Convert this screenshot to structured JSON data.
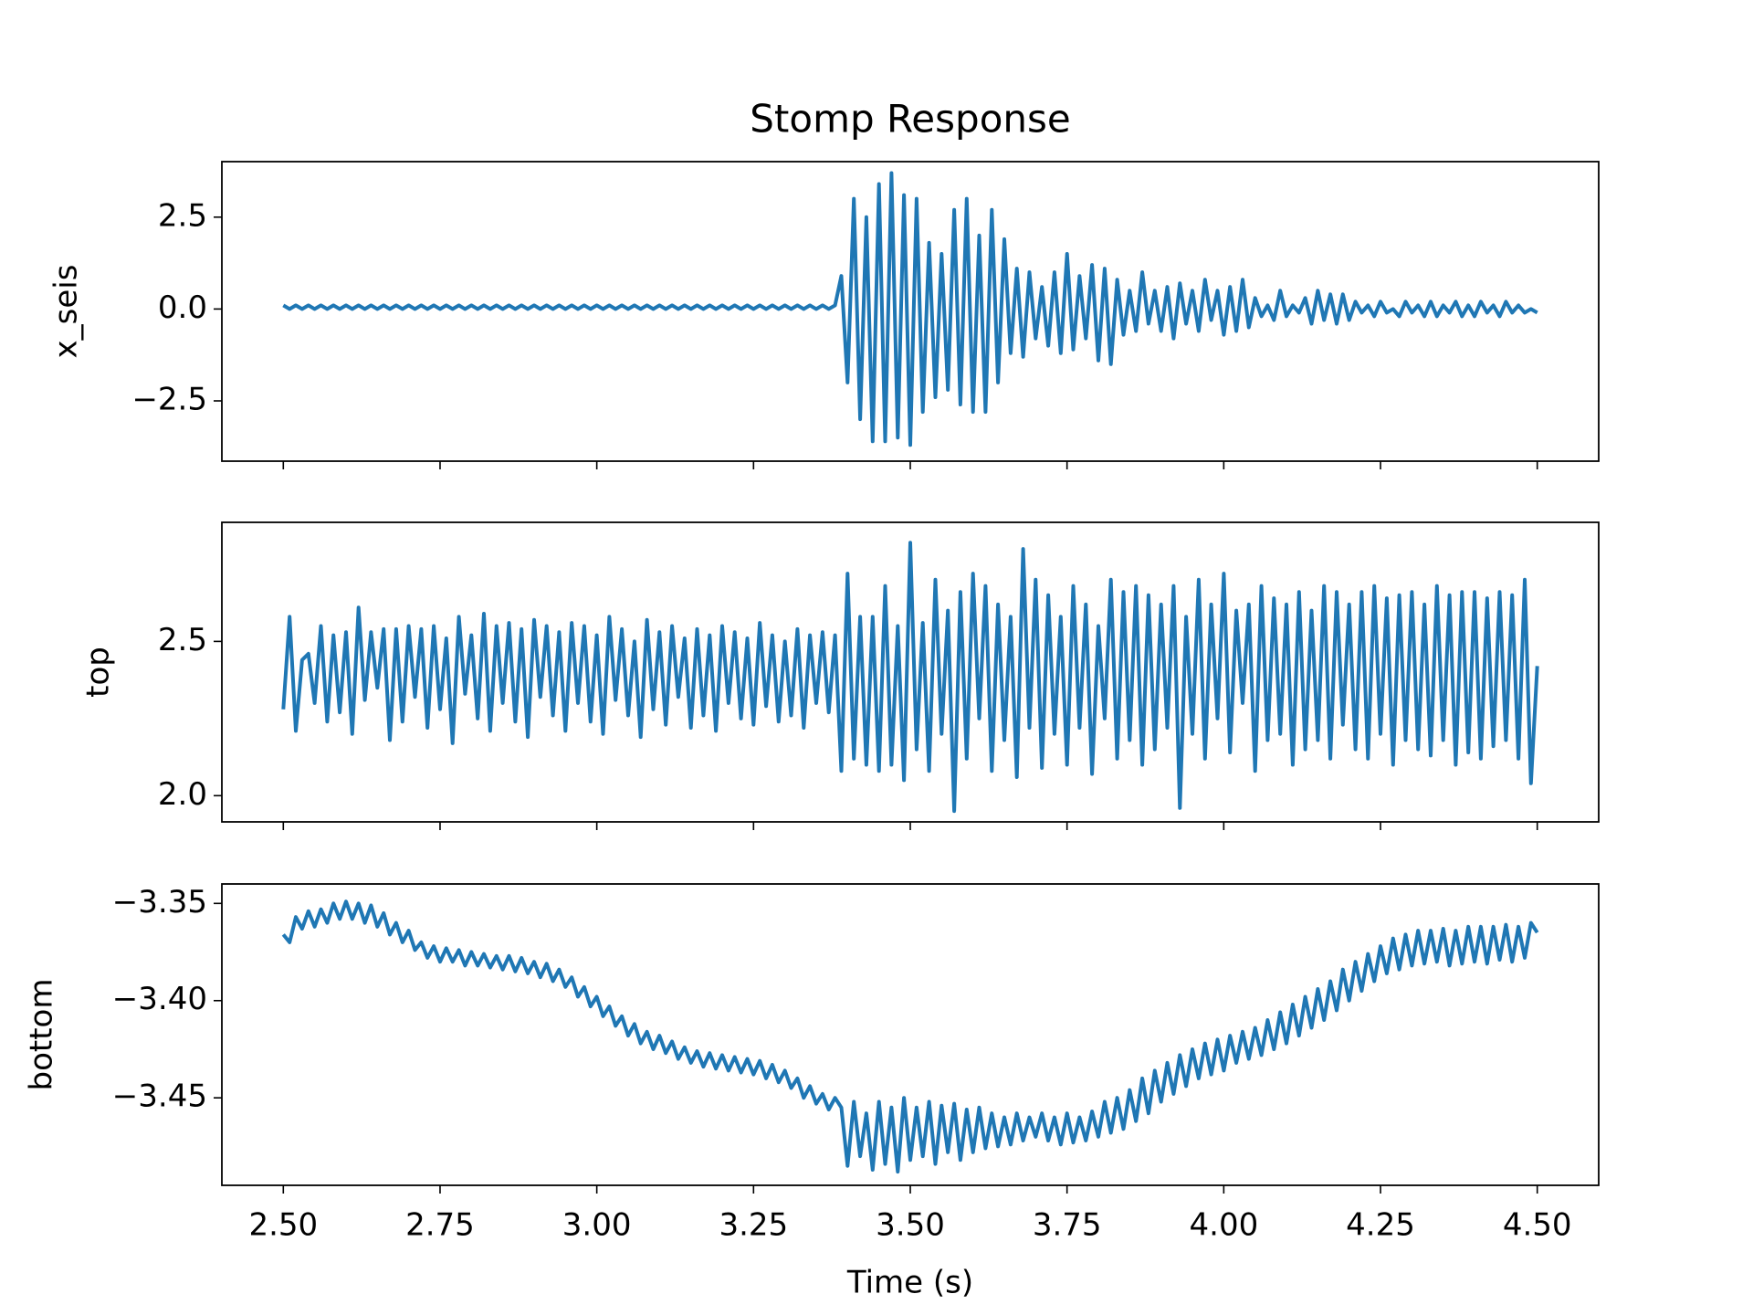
{
  "chart_data": {
    "type": "line",
    "title": "Stomp Response",
    "xlabel": "Time (s)",
    "xlim": [
      2.402,
      4.598
    ],
    "xticks": [
      {
        "value": 2.5,
        "label": "2.50"
      },
      {
        "value": 2.75,
        "label": "2.75"
      },
      {
        "value": 3.0,
        "label": "3.00"
      },
      {
        "value": 3.25,
        "label": "3.25"
      },
      {
        "value": 3.5,
        "label": "3.50"
      },
      {
        "value": 3.75,
        "label": "3.75"
      },
      {
        "value": 4.0,
        "label": "4.00"
      },
      {
        "value": 4.25,
        "label": "4.25"
      },
      {
        "value": 4.5,
        "label": "4.50"
      }
    ],
    "x": [
      2.5,
      2.51,
      2.52,
      2.53,
      2.54,
      2.55,
      2.56,
      2.57,
      2.58,
      2.59,
      2.6,
      2.61,
      2.62,
      2.63,
      2.64,
      2.65,
      2.66,
      2.67,
      2.68,
      2.69,
      2.7,
      2.71,
      2.72,
      2.73,
      2.74,
      2.75,
      2.76,
      2.77,
      2.78,
      2.79,
      2.8,
      2.81,
      2.82,
      2.83,
      2.84,
      2.85,
      2.86,
      2.87,
      2.88,
      2.89,
      2.9,
      2.91,
      2.92,
      2.93,
      2.94,
      2.95,
      2.96,
      2.97,
      2.98,
      2.99,
      3.0,
      3.01,
      3.02,
      3.03,
      3.04,
      3.05,
      3.06,
      3.07,
      3.08,
      3.09,
      3.1,
      3.11,
      3.12,
      3.13,
      3.14,
      3.15,
      3.16,
      3.17,
      3.18,
      3.19,
      3.2,
      3.21,
      3.22,
      3.23,
      3.24,
      3.25,
      3.26,
      3.27,
      3.28,
      3.29,
      3.3,
      3.31,
      3.32,
      3.33,
      3.34,
      3.35,
      3.36,
      3.37,
      3.38,
      3.39,
      3.4,
      3.41,
      3.42,
      3.43,
      3.44,
      3.45,
      3.46,
      3.47,
      3.48,
      3.49,
      3.5,
      3.51,
      3.52,
      3.53,
      3.54,
      3.55,
      3.56,
      3.57,
      3.58,
      3.59,
      3.6,
      3.61,
      3.62,
      3.63,
      3.64,
      3.65,
      3.66,
      3.67,
      3.68,
      3.69,
      3.7,
      3.71,
      3.72,
      3.73,
      3.74,
      3.75,
      3.76,
      3.77,
      3.78,
      3.79,
      3.8,
      3.81,
      3.82,
      3.83,
      3.84,
      3.85,
      3.86,
      3.87,
      3.88,
      3.89,
      3.9,
      3.91,
      3.92,
      3.93,
      3.94,
      3.95,
      3.96,
      3.97,
      3.98,
      3.99,
      4.0,
      4.01,
      4.02,
      4.03,
      4.04,
      4.05,
      4.06,
      4.07,
      4.08,
      4.09,
      4.1,
      4.11,
      4.12,
      4.13,
      4.14,
      4.15,
      4.16,
      4.17,
      4.18,
      4.19,
      4.2,
      4.21,
      4.22,
      4.23,
      4.24,
      4.25,
      4.26,
      4.27,
      4.28,
      4.29,
      4.3,
      4.31,
      4.32,
      4.33,
      4.34,
      4.35,
      4.36,
      4.37,
      4.38,
      4.39,
      4.4,
      4.41,
      4.42,
      4.43,
      4.44,
      4.45,
      4.46,
      4.47,
      4.48,
      4.49,
      4.5
    ],
    "panels": [
      {
        "ylabel": "x_seis",
        "ylim": [
          -4.14,
          4.01
        ],
        "yticks": [
          {
            "value": -2.5,
            "label": "−2.5"
          },
          {
            "value": 0,
            "label": "0.0"
          },
          {
            "value": 2.5,
            "label": "2.5"
          }
        ],
        "series": [
          {
            "color": "#1f77b4",
            "values": [
              0.1,
              0.0,
              0.1,
              0.0,
              0.1,
              0.0,
              0.1,
              0.0,
              0.1,
              0.0,
              0.1,
              0.0,
              0.1,
              0.0,
              0.1,
              0.0,
              0.1,
              0.0,
              0.1,
              0.0,
              0.1,
              0.0,
              0.1,
              0.0,
              0.1,
              0.0,
              0.1,
              0.0,
              0.1,
              0.0,
              0.1,
              0.0,
              0.1,
              0.0,
              0.1,
              0.0,
              0.1,
              0.0,
              0.1,
              0.0,
              0.1,
              0.0,
              0.1,
              0.0,
              0.1,
              0.0,
              0.1,
              0.0,
              0.1,
              0.0,
              0.1,
              0.0,
              0.1,
              0.0,
              0.1,
              0.0,
              0.1,
              0.0,
              0.1,
              0.0,
              0.1,
              0.0,
              0.1,
              0.0,
              0.1,
              0.0,
              0.1,
              0.0,
              0.1,
              0.0,
              0.1,
              0.0,
              0.1,
              0.0,
              0.1,
              0.0,
              0.1,
              0.0,
              0.1,
              0.0,
              0.1,
              0.0,
              0.1,
              0.0,
              0.1,
              0.0,
              0.1,
              0.0,
              0.1,
              0.9,
              -2.0,
              3.0,
              -3.0,
              2.5,
              -3.6,
              3.4,
              -3.6,
              3.7,
              -3.5,
              3.1,
              -3.7,
              3.0,
              -2.8,
              1.8,
              -2.4,
              1.5,
              -2.2,
              2.7,
              -2.6,
              3.0,
              -2.8,
              2.0,
              -2.8,
              2.7,
              -2.0,
              1.9,
              -1.2,
              1.1,
              -1.3,
              1.0,
              -0.8,
              0.6,
              -1.0,
              1.0,
              -1.2,
              1.5,
              -1.1,
              0.9,
              -0.8,
              1.2,
              -1.4,
              1.1,
              -1.5,
              0.8,
              -0.7,
              0.5,
              -0.6,
              1.0,
              -0.4,
              0.5,
              -0.6,
              0.6,
              -0.8,
              0.7,
              -0.4,
              0.5,
              -0.6,
              0.8,
              -0.3,
              0.5,
              -0.7,
              0.6,
              -0.6,
              0.8,
              -0.5,
              0.3,
              -0.2,
              0.1,
              -0.3,
              0.5,
              -0.2,
              0.1,
              -0.1,
              0.3,
              -0.4,
              0.5,
              -0.3,
              0.4,
              -0.4,
              0.4,
              -0.3,
              0.2,
              -0.1,
              0.1,
              -0.2,
              0.2,
              -0.1,
              0.0,
              -0.2,
              0.2,
              -0.1,
              0.1,
              -0.2,
              0.2,
              -0.2,
              0.1,
              -0.1,
              0.2,
              -0.2,
              0.1,
              -0.2,
              0.2,
              -0.1,
              0.1,
              -0.2,
              0.2,
              -0.1,
              0.1,
              -0.1,
              0.0,
              -0.1
            ]
          }
        ]
      },
      {
        "ylabel": "top",
        "ylim": [
          1.915,
          2.886
        ],
        "yticks": [
          {
            "value": 2.0,
            "label": "2.0"
          },
          {
            "value": 2.5,
            "label": "2.5"
          }
        ],
        "series": [
          {
            "color": "#1f77b4",
            "values": [
              2.28,
              2.58,
              2.21,
              2.44,
              2.46,
              2.3,
              2.55,
              2.24,
              2.52,
              2.27,
              2.53,
              2.2,
              2.61,
              2.31,
              2.53,
              2.35,
              2.54,
              2.18,
              2.54,
              2.24,
              2.55,
              2.32,
              2.54,
              2.22,
              2.55,
              2.28,
              2.51,
              2.17,
              2.58,
              2.33,
              2.52,
              2.25,
              2.59,
              2.21,
              2.55,
              2.3,
              2.56,
              2.24,
              2.54,
              2.19,
              2.57,
              2.32,
              2.55,
              2.26,
              2.53,
              2.21,
              2.56,
              2.3,
              2.55,
              2.24,
              2.52,
              2.2,
              2.58,
              2.31,
              2.54,
              2.26,
              2.5,
              2.19,
              2.57,
              2.28,
              2.53,
              2.23,
              2.55,
              2.32,
              2.51,
              2.22,
              2.54,
              2.26,
              2.52,
              2.21,
              2.55,
              2.3,
              2.53,
              2.25,
              2.51,
              2.23,
              2.56,
              2.29,
              2.52,
              2.24,
              2.5,
              2.26,
              2.54,
              2.22,
              2.52,
              2.3,
              2.53,
              2.27,
              2.52,
              2.08,
              2.72,
              2.12,
              2.58,
              2.1,
              2.58,
              2.08,
              2.68,
              2.1,
              2.55,
              2.05,
              2.82,
              2.15,
              2.56,
              2.08,
              2.7,
              2.2,
              2.6,
              1.95,
              2.66,
              2.12,
              2.72,
              2.25,
              2.68,
              2.08,
              2.62,
              2.18,
              2.58,
              2.06,
              2.8,
              2.22,
              2.7,
              2.09,
              2.65,
              2.2,
              2.58,
              2.1,
              2.68,
              2.22,
              2.62,
              2.07,
              2.55,
              2.25,
              2.7,
              2.12,
              2.66,
              2.18,
              2.68,
              2.1,
              2.65,
              2.15,
              2.62,
              2.22,
              2.68,
              1.96,
              2.58,
              2.2,
              2.7,
              2.12,
              2.62,
              2.25,
              2.72,
              2.14,
              2.6,
              2.3,
              2.62,
              2.08,
              2.68,
              2.18,
              2.64,
              2.2,
              2.62,
              2.1,
              2.66,
              2.15,
              2.6,
              2.18,
              2.68,
              2.12,
              2.66,
              2.23,
              2.62,
              2.15,
              2.66,
              2.12,
              2.68,
              2.2,
              2.64,
              2.1,
              2.65,
              2.18,
              2.66,
              2.15,
              2.62,
              2.13,
              2.68,
              2.18,
              2.65,
              2.1,
              2.66,
              2.14,
              2.66,
              2.12,
              2.64,
              2.16,
              2.66,
              2.18,
              2.65,
              2.12,
              2.7,
              2.04,
              2.42
            ]
          }
        ]
      },
      {
        "ylabel": "bottom",
        "ylim": [
          -3.495,
          -3.34
        ],
        "yticks": [
          {
            "value": -3.45,
            "label": "−3.45"
          },
          {
            "value": -3.4,
            "label": "−3.40"
          },
          {
            "value": -3.35,
            "label": "−3.35"
          }
        ],
        "series": [
          {
            "color": "#1f77b4",
            "values": [
              -3.366,
              -3.37,
              -3.357,
              -3.363,
              -3.354,
              -3.362,
              -3.353,
              -3.36,
              -3.35,
              -3.358,
              -3.349,
              -3.358,
              -3.35,
              -3.36,
              -3.351,
              -3.362,
              -3.355,
              -3.366,
              -3.36,
              -3.37,
              -3.364,
              -3.374,
              -3.37,
              -3.378,
              -3.372,
              -3.38,
              -3.373,
              -3.38,
              -3.374,
              -3.382,
              -3.375,
              -3.382,
              -3.376,
              -3.383,
              -3.377,
              -3.384,
              -3.377,
              -3.385,
              -3.378,
              -3.386,
              -3.38,
              -3.388,
              -3.381,
              -3.39,
              -3.384,
              -3.393,
              -3.388,
              -3.398,
              -3.393,
              -3.403,
              -3.398,
              -3.408,
              -3.403,
              -3.413,
              -3.408,
              -3.418,
              -3.412,
              -3.422,
              -3.416,
              -3.425,
              -3.418,
              -3.427,
              -3.421,
              -3.43,
              -3.424,
              -3.432,
              -3.426,
              -3.434,
              -3.427,
              -3.435,
              -3.428,
              -3.436,
              -3.429,
              -3.437,
              -3.43,
              -3.438,
              -3.431,
              -3.44,
              -3.433,
              -3.442,
              -3.436,
              -3.445,
              -3.44,
              -3.45,
              -3.444,
              -3.453,
              -3.448,
              -3.456,
              -3.45,
              -3.455,
              -3.485,
              -3.452,
              -3.48,
              -3.458,
              -3.487,
              -3.452,
              -3.484,
              -3.455,
              -3.488,
              -3.45,
              -3.482,
              -3.455,
              -3.48,
              -3.452,
              -3.484,
              -3.454,
              -3.478,
              -3.453,
              -3.482,
              -3.456,
              -3.478,
              -3.455,
              -3.476,
              -3.458,
              -3.475,
              -3.46,
              -3.474,
              -3.458,
              -3.472,
              -3.46,
              -3.47,
              -3.458,
              -3.472,
              -3.46,
              -3.474,
              -3.458,
              -3.473,
              -3.46,
              -3.472,
              -3.457,
              -3.47,
              -3.452,
              -3.468,
              -3.45,
              -3.466,
              -3.446,
              -3.462,
              -3.44,
              -3.458,
              -3.436,
              -3.452,
              -3.432,
              -3.448,
              -3.428,
              -3.444,
              -3.425,
              -3.44,
              -3.422,
              -3.438,
              -3.42,
              -3.436,
              -3.418,
              -3.432,
              -3.416,
              -3.43,
              -3.414,
              -3.428,
              -3.41,
              -3.425,
              -3.406,
              -3.422,
              -3.402,
              -3.418,
              -3.398,
              -3.414,
              -3.394,
              -3.41,
              -3.39,
              -3.405,
              -3.384,
              -3.4,
              -3.38,
              -3.395,
              -3.376,
              -3.39,
              -3.372,
              -3.386,
              -3.368,
              -3.384,
              -3.366,
              -3.382,
              -3.364,
              -3.381,
              -3.364,
              -3.38,
              -3.363,
              -3.382,
              -3.364,
              -3.381,
              -3.362,
              -3.38,
              -3.362,
              -3.381,
              -3.362,
              -3.379,
              -3.361,
              -3.38,
              -3.362,
              -3.378,
              -3.36,
              -3.365
            ]
          }
        ]
      }
    ]
  }
}
